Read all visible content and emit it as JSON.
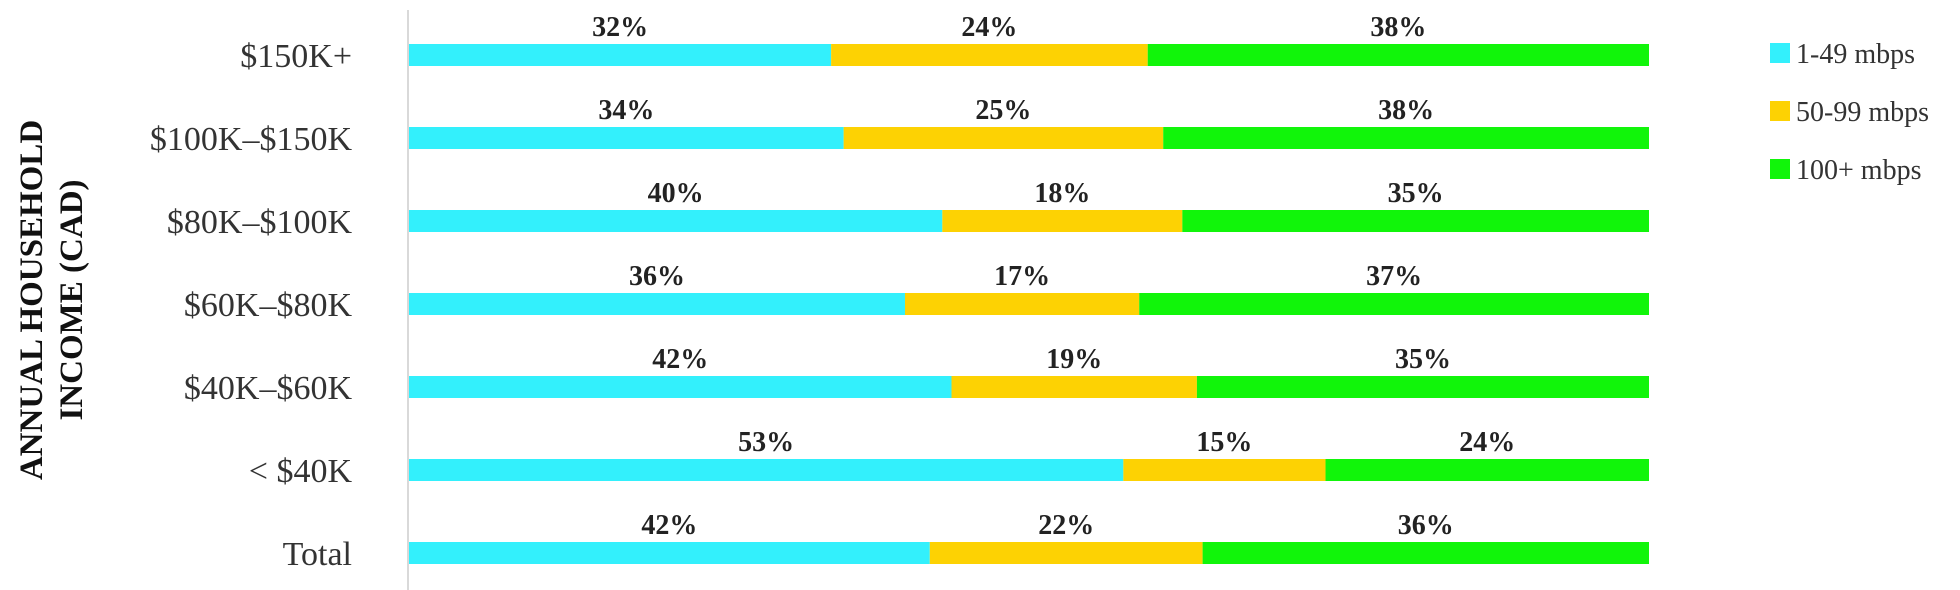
{
  "chart_data": {
    "type": "bar",
    "orientation": "horizontal",
    "stacked": true,
    "title": "",
    "xlabel": "",
    "ylabel": "ANNUAL HOUSEHOLD INCOME (CAD)",
    "ylabel_lines": [
      "ANNUAL HOUSEHOLD",
      "INCOME (CAD)"
    ],
    "categories": [
      "$150K+",
      "$100K–$150K",
      "$80K–$100K",
      "$60K–$80K",
      "$40K–$60K",
      "< $40K",
      "Total"
    ],
    "series": [
      {
        "name": "1-49 mbps",
        "color": "#33f0fc",
        "values": [
          32,
          34,
          40,
          36,
          42,
          53,
          42
        ],
        "labels": [
          "32%",
          "34%",
          "40%",
          "36%",
          "42%",
          "53%",
          "42%"
        ]
      },
      {
        "name": "50-99 mbps",
        "color": "#fdd203",
        "values": [
          24,
          25,
          18,
          17,
          19,
          15,
          22
        ],
        "labels": [
          "24%",
          "25%",
          "18%",
          "17%",
          "19%",
          "15%",
          "22%"
        ]
      },
      {
        "name": "100+ mbps",
        "color": "#11f50a",
        "values": [
          38,
          38,
          35,
          37,
          35,
          24,
          36
        ],
        "labels": [
          "38%",
          "38%",
          "35%",
          "37%",
          "35%",
          "24%",
          "36%"
        ]
      }
    ],
    "grid": false,
    "legend_position": "right"
  }
}
